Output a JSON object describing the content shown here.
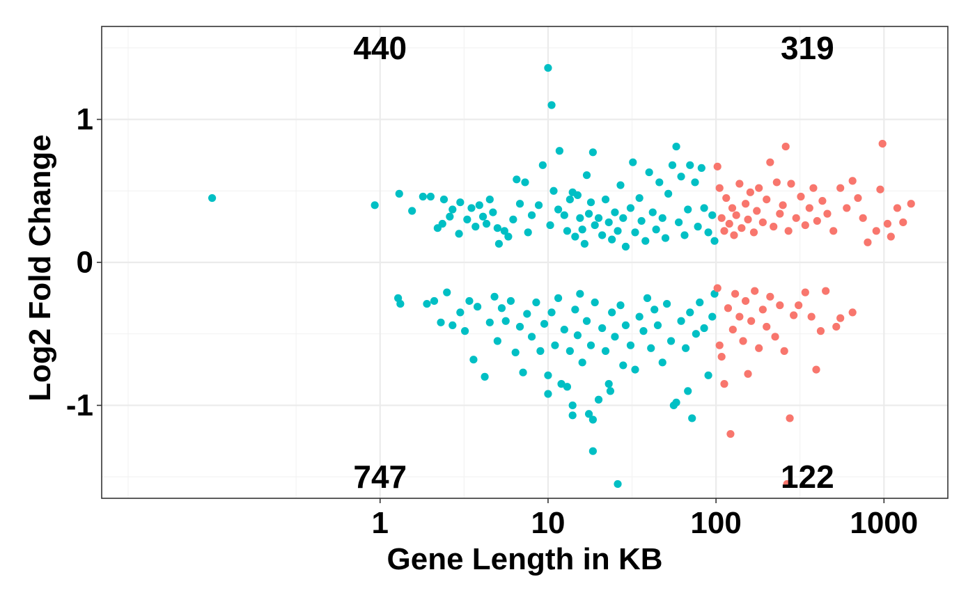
{
  "chart_data": {
    "type": "scatter",
    "title": "",
    "xlabel": "Gene Length in KB",
    "ylabel": "Log2 Fold Change",
    "x_scale": "log10",
    "x_ticks": [
      1,
      10,
      100,
      1000
    ],
    "x_tick_labels": [
      "1",
      "10",
      "100",
      "1000"
    ],
    "y_ticks": [
      -1,
      0,
      1
    ],
    "y_tick_labels": [
      "-1",
      "0",
      "1"
    ],
    "xlim": [
      0.022,
      2400
    ],
    "ylim": [
      -1.65,
      1.65
    ],
    "grid": true,
    "legend": "none",
    "colors": {
      "short": "#00BFC4",
      "long": "#F8766D"
    },
    "length_threshold_kb": 100,
    "quadrant_counts": [
      {
        "label": "440",
        "x": 1,
        "y": 1.5
      },
      {
        "label": "319",
        "x": 350,
        "y": 1.5
      },
      {
        "label": "747",
        "x": 1,
        "y": -1.5
      },
      {
        "label": "122",
        "x": 350,
        "y": -1.5
      }
    ],
    "series": [
      {
        "color": "#00BFC4",
        "points": [
          [
            0.1,
            0.45
          ],
          [
            0.93,
            0.4
          ],
          [
            1.3,
            0.48
          ],
          [
            1.55,
            0.36
          ],
          [
            1.8,
            0.46
          ],
          [
            2.0,
            0.46
          ],
          [
            2.2,
            0.24
          ],
          [
            2.35,
            0.27
          ],
          [
            2.4,
            0.44
          ],
          [
            2.6,
            0.32
          ],
          [
            2.7,
            0.37
          ],
          [
            2.95,
            0.2
          ],
          [
            3.0,
            0.42
          ],
          [
            3.3,
            0.3
          ],
          [
            3.5,
            0.38
          ],
          [
            3.7,
            0.25
          ],
          [
            3.9,
            0.4
          ],
          [
            4.1,
            0.32
          ],
          [
            4.3,
            0.27
          ],
          [
            4.5,
            0.44
          ],
          [
            4.7,
            0.35
          ],
          [
            5.0,
            0.24
          ],
          [
            5.1,
            0.13
          ],
          [
            5.5,
            0.22
          ],
          [
            5.8,
            0.18
          ],
          [
            6.2,
            0.3
          ],
          [
            6.5,
            0.58
          ],
          [
            6.8,
            0.41
          ],
          [
            7.3,
            0.56
          ],
          [
            7.6,
            0.21
          ],
          [
            8.0,
            0.33
          ],
          [
            8.8,
            0.4
          ],
          [
            9.3,
            0.68
          ],
          [
            10.3,
            0.26
          ],
          [
            10.5,
            1.1
          ],
          [
            10.0,
            1.36
          ],
          [
            10.8,
            0.5
          ],
          [
            11.5,
            0.37
          ],
          [
            11.7,
            0.78
          ],
          [
            12.5,
            0.33
          ],
          [
            13.0,
            0.22
          ],
          [
            13.5,
            0.44
          ],
          [
            14.0,
            0.49
          ],
          [
            14.5,
            0.18
          ],
          [
            15.0,
            0.47
          ],
          [
            15.5,
            0.31
          ],
          [
            16.0,
            0.23
          ],
          [
            16.5,
            0.13
          ],
          [
            17.0,
            0.61
          ],
          [
            17.5,
            0.34
          ],
          [
            18.0,
            0.42
          ],
          [
            18.5,
            0.77
          ],
          [
            19.0,
            0.26
          ],
          [
            20.0,
            0.31
          ],
          [
            21.0,
            0.19
          ],
          [
            22.0,
            0.44
          ],
          [
            23.0,
            0.28
          ],
          [
            24.0,
            0.16
          ],
          [
            25.0,
            0.35
          ],
          [
            26.0,
            0.22
          ],
          [
            27.0,
            0.54
          ],
          [
            28.0,
            0.31
          ],
          [
            29.0,
            0.11
          ],
          [
            31.0,
            0.38
          ],
          [
            32.0,
            0.7
          ],
          [
            33.0,
            0.21
          ],
          [
            35.0,
            0.45
          ],
          [
            36.0,
            0.29
          ],
          [
            38.0,
            0.15
          ],
          [
            40.0,
            0.63
          ],
          [
            42.0,
            0.35
          ],
          [
            44.0,
            0.23
          ],
          [
            46.0,
            0.56
          ],
          [
            48.0,
            0.31
          ],
          [
            50.0,
            0.17
          ],
          [
            52.0,
            0.48
          ],
          [
            55.0,
            0.68
          ],
          [
            58.0,
            0.81
          ],
          [
            60.0,
            0.28
          ],
          [
            62.0,
            0.6
          ],
          [
            65.0,
            0.19
          ],
          [
            68.0,
            0.37
          ],
          [
            70.0,
            0.68
          ],
          [
            75.0,
            0.56
          ],
          [
            78.0,
            0.25
          ],
          [
            82.0,
            0.66
          ],
          [
            85.0,
            0.38
          ],
          [
            90.0,
            0.21
          ],
          [
            95.0,
            0.33
          ],
          [
            98.0,
            0.15
          ],
          [
            1.28,
            -0.25
          ],
          [
            1.32,
            -0.29
          ],
          [
            1.9,
            -0.29
          ],
          [
            2.1,
            -0.27
          ],
          [
            2.3,
            -0.42
          ],
          [
            2.5,
            -0.21
          ],
          [
            2.7,
            -0.44
          ],
          [
            3.0,
            -0.35
          ],
          [
            3.2,
            -0.48
          ],
          [
            3.4,
            -0.27
          ],
          [
            3.6,
            -0.68
          ],
          [
            3.8,
            -0.31
          ],
          [
            4.2,
            -0.8
          ],
          [
            4.5,
            -0.42
          ],
          [
            4.8,
            -0.24
          ],
          [
            5.0,
            -0.55
          ],
          [
            5.3,
            -0.32
          ],
          [
            5.6,
            -0.41
          ],
          [
            6.0,
            -0.27
          ],
          [
            6.4,
            -0.63
          ],
          [
            6.8,
            -0.45
          ],
          [
            7.1,
            -0.77
          ],
          [
            7.5,
            -0.36
          ],
          [
            8.0,
            -0.52
          ],
          [
            8.5,
            -0.28
          ],
          [
            9.0,
            -0.62
          ],
          [
            9.5,
            -0.43
          ],
          [
            10.0,
            -0.79
          ],
          [
            10.0,
            -0.92
          ],
          [
            10.5,
            -0.35
          ],
          [
            11.0,
            -0.58
          ],
          [
            11.5,
            -0.25
          ],
          [
            12.0,
            -0.85
          ],
          [
            12.5,
            -0.47
          ],
          [
            13.0,
            -0.87
          ],
          [
            13.5,
            -0.62
          ],
          [
            14.0,
            -1.0
          ],
          [
            14.0,
            -1.07
          ],
          [
            14.5,
            -0.33
          ],
          [
            15.0,
            -0.51
          ],
          [
            15.5,
            -0.22
          ],
          [
            16.0,
            -0.7
          ],
          [
            17.0,
            -0.41
          ],
          [
            17.5,
            -1.06
          ],
          [
            18.0,
            -0.58
          ],
          [
            18.5,
            -1.1
          ],
          [
            18.5,
            -1.32
          ],
          [
            19.0,
            -0.28
          ],
          [
            20.0,
            -0.96
          ],
          [
            21.0,
            -0.46
          ],
          [
            22.0,
            -0.62
          ],
          [
            23.0,
            -0.85
          ],
          [
            23.5,
            -0.9
          ],
          [
            24.0,
            -0.35
          ],
          [
            25.0,
            -0.52
          ],
          [
            26.0,
            -1.55
          ],
          [
            27.0,
            -0.3
          ],
          [
            28.0,
            -0.72
          ],
          [
            29.0,
            -0.44
          ],
          [
            31.0,
            -0.58
          ],
          [
            33.0,
            -0.75
          ],
          [
            35.0,
            -0.38
          ],
          [
            37.0,
            -0.48
          ],
          [
            39.0,
            -0.25
          ],
          [
            41.0,
            -0.6
          ],
          [
            43.0,
            -0.33
          ],
          [
            45.0,
            -0.44
          ],
          [
            48.0,
            -0.7
          ],
          [
            51.0,
            -0.29
          ],
          [
            54.0,
            -0.55
          ],
          [
            56.0,
            -1.0
          ],
          [
            58.0,
            -0.98
          ],
          [
            62.0,
            -0.41
          ],
          [
            66.0,
            -0.6
          ],
          [
            68.0,
            -0.9
          ],
          [
            70.0,
            -0.35
          ],
          [
            72.0,
            -1.09
          ],
          [
            76.0,
            -0.5
          ],
          [
            80.0,
            -0.28
          ],
          [
            85.0,
            -0.46
          ],
          [
            90.0,
            -0.79
          ],
          [
            95.0,
            -0.38
          ],
          [
            98.0,
            -0.22
          ]
        ]
      },
      {
        "color": "#F8766D",
        "points": [
          [
            102,
            0.67
          ],
          [
            105,
            0.52
          ],
          [
            108,
            0.31
          ],
          [
            112,
            0.22
          ],
          [
            115,
            0.45
          ],
          [
            120,
            0.27
          ],
          [
            125,
            0.38
          ],
          [
            128,
            0.19
          ],
          [
            132,
            0.33
          ],
          [
            138,
            0.55
          ],
          [
            142,
            0.24
          ],
          [
            150,
            0.41
          ],
          [
            155,
            0.3
          ],
          [
            160,
            0.49
          ],
          [
            168,
            0.21
          ],
          [
            175,
            0.36
          ],
          [
            180,
            0.52
          ],
          [
            190,
            0.28
          ],
          [
            200,
            0.44
          ],
          [
            210,
            0.7
          ],
          [
            220,
            0.25
          ],
          [
            230,
            0.56
          ],
          [
            240,
            0.34
          ],
          [
            250,
            0.4
          ],
          [
            260,
            0.81
          ],
          [
            270,
            0.22
          ],
          [
            280,
            0.55
          ],
          [
            300,
            0.31
          ],
          [
            320,
            0.46
          ],
          [
            340,
            0.26
          ],
          [
            360,
            0.38
          ],
          [
            380,
            0.52
          ],
          [
            400,
            0.29
          ],
          [
            430,
            0.43
          ],
          [
            460,
            0.34
          ],
          [
            500,
            0.22
          ],
          [
            550,
            0.52
          ],
          [
            600,
            0.38
          ],
          [
            650,
            0.57
          ],
          [
            700,
            0.45
          ],
          [
            750,
            0.31
          ],
          [
            800,
            0.14
          ],
          [
            900,
            0.22
          ],
          [
            980,
            0.83
          ],
          [
            950,
            0.51
          ],
          [
            1050,
            0.27
          ],
          [
            1100,
            0.18
          ],
          [
            1200,
            0.38
          ],
          [
            1300,
            0.28
          ],
          [
            1450,
            0.41
          ],
          [
            102,
            -0.18
          ],
          [
            105,
            -0.58
          ],
          [
            108,
            -0.66
          ],
          [
            112,
            -0.85
          ],
          [
            118,
            -0.32
          ],
          [
            122,
            -1.2
          ],
          [
            126,
            -0.47
          ],
          [
            130,
            -0.22
          ],
          [
            138,
            -0.38
          ],
          [
            145,
            -0.55
          ],
          [
            150,
            -0.27
          ],
          [
            155,
            -0.78
          ],
          [
            162,
            -0.41
          ],
          [
            170,
            -0.2
          ],
          [
            180,
            -0.6
          ],
          [
            190,
            -0.33
          ],
          [
            200,
            -0.45
          ],
          [
            210,
            -0.24
          ],
          [
            225,
            -0.52
          ],
          [
            240,
            -0.3
          ],
          [
            255,
            -0.62
          ],
          [
            265,
            -1.55
          ],
          [
            275,
            -1.09
          ],
          [
            290,
            -0.37
          ],
          [
            310,
            -0.3
          ],
          [
            340,
            -0.21
          ],
          [
            370,
            -0.38
          ],
          [
            395,
            -0.75
          ],
          [
            420,
            -0.48
          ],
          [
            450,
            -0.2
          ],
          [
            520,
            -0.45
          ],
          [
            550,
            -0.39
          ],
          [
            650,
            -0.35
          ]
        ]
      }
    ]
  }
}
